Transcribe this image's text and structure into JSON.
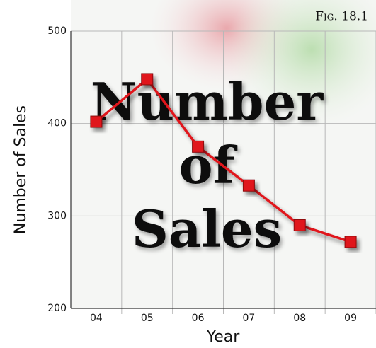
{
  "chart_data": {
    "type": "line",
    "figure_label": "Fig. 18.1",
    "overlay_lines": [
      "Number",
      "of",
      "Sales"
    ],
    "x_label": "Year",
    "y_label": "Number of Sales",
    "categories": [
      "04",
      "05",
      "06",
      "07",
      "08",
      "09"
    ],
    "values": [
      402,
      448,
      375,
      333,
      290,
      272
    ],
    "color": "#e0141b",
    "ylim": [
      200,
      500
    ],
    "yticks": [
      200,
      300,
      400,
      500
    ],
    "grid": true
  }
}
